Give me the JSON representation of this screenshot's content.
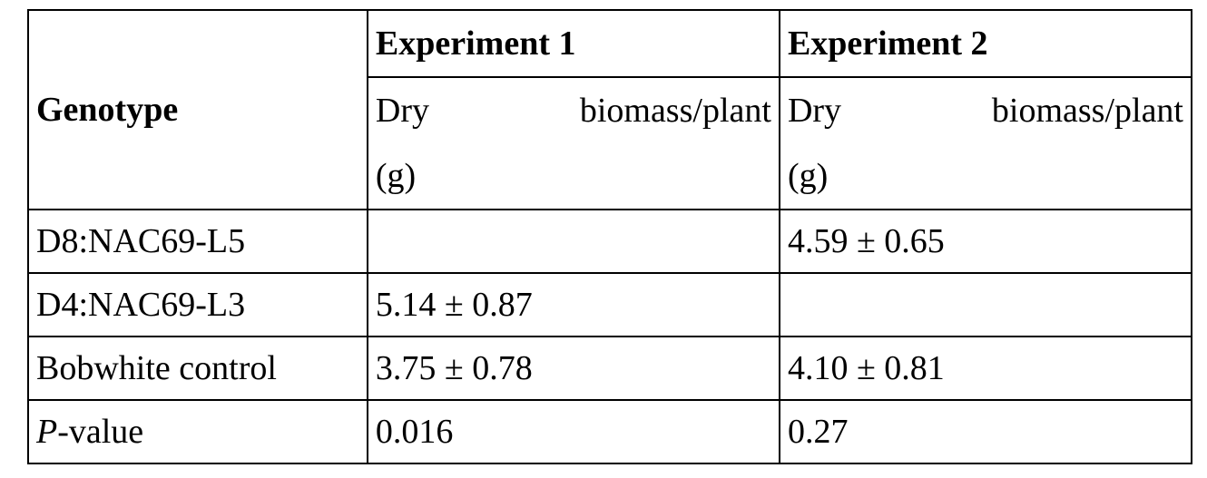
{
  "table": {
    "header": {
      "genotype": "Genotype",
      "exp1": "Experiment 1",
      "exp2": "Experiment 2",
      "sub_word1": "Dry",
      "sub_word2": "biomass/plant",
      "sub_unit": "(g)"
    },
    "rows": [
      {
        "genotype": "D8:NAC69-L5",
        "exp1": "",
        "exp2": "4.59 ± 0.65"
      },
      {
        "genotype": "D4:NAC69-L3",
        "exp1": "5.14 ± 0.87",
        "exp2": ""
      },
      {
        "genotype": "Bobwhite control",
        "exp1": "3.75 ± 0.78",
        "exp2": "4.10 ± 0.81"
      }
    ],
    "pvalue": {
      "label_italic": "P",
      "label_rest": "-value",
      "exp1": "0.016",
      "exp2": "0.27"
    }
  }
}
